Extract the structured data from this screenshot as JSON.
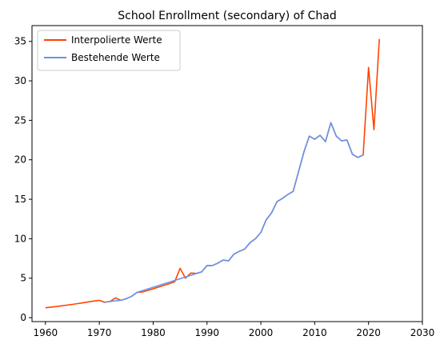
{
  "chart_data": {
    "type": "line",
    "title": "School Enrollment (secondary) of Chad",
    "xlabel": "",
    "ylabel": "",
    "xlim": [
      1957.5,
      2030
    ],
    "ylim": [
      -0.5,
      37
    ],
    "xticks": [
      1960,
      1970,
      1980,
      1990,
      2000,
      2010,
      2020,
      2030
    ],
    "yticks": [
      0,
      5,
      10,
      15,
      20,
      25,
      30,
      35
    ],
    "grid": false,
    "legend_position": "top-left",
    "series": [
      {
        "name": "Interpolierte Werte",
        "color": "#ff4500",
        "x": [
          1960,
          1961,
          1962,
          1963,
          1964,
          1965,
          1966,
          1967,
          1968,
          1969,
          1970,
          1971,
          1972,
          1973,
          1974,
          1975,
          1976,
          1977,
          1978,
          1979,
          1980,
          1981,
          1982,
          1983,
          1984,
          1985,
          1986,
          1987,
          1988,
          1989,
          1990,
          1991,
          1992,
          1993,
          1994,
          1995,
          1996,
          1997,
          1998,
          1999,
          2000,
          2001,
          2002,
          2003,
          2004,
          2005,
          2006,
          2007,
          2008,
          2009,
          2010,
          2011,
          2012,
          2013,
          2014,
          2015,
          2016,
          2017,
          2018,
          2019,
          2020,
          2021,
          2022
        ],
        "y": [
          1.25,
          1.33,
          1.41,
          1.5,
          1.59,
          1.68,
          1.78,
          1.89,
          2.0,
          2.1,
          2.2,
          1.95,
          2.05,
          2.5,
          2.2,
          2.4,
          2.7,
          3.2,
          3.25,
          3.45,
          3.65,
          3.87,
          4.1,
          4.3,
          4.55,
          6.25,
          5.0,
          5.65,
          5.6,
          5.8,
          6.6,
          6.6,
          6.9,
          7.3,
          7.2,
          8.05,
          8.4,
          8.7,
          9.5,
          10.0,
          10.8,
          12.4,
          13.3,
          14.7,
          15.1,
          15.6,
          16.0,
          18.5,
          21.0,
          23.0,
          22.6,
          23.1,
          22.3,
          24.7,
          23.0,
          22.4,
          22.5,
          20.7,
          20.3,
          20.6,
          31.7,
          23.8,
          35.3
        ]
      },
      {
        "name": "Bestehende Werte",
        "color": "#6495ed",
        "x": [
          1971,
          1972,
          1974,
          1975,
          1976,
          1977,
          1989,
          1990,
          1991,
          1992,
          1993,
          1994,
          1995,
          1996,
          1997,
          1998,
          1999,
          2000,
          2001,
          2002,
          2003,
          2004,
          2005,
          2006,
          2007,
          2008,
          2009,
          2010,
          2011,
          2012,
          2013,
          2014,
          2015,
          2016,
          2017,
          2018,
          2019
        ],
        "y": [
          1.95,
          2.05,
          2.2,
          2.4,
          2.7,
          3.2,
          5.8,
          6.6,
          6.6,
          6.9,
          7.3,
          7.2,
          8.05,
          8.4,
          8.7,
          9.5,
          10.0,
          10.8,
          12.4,
          13.3,
          14.7,
          15.1,
          15.6,
          16.0,
          18.5,
          21.0,
          23.0,
          22.6,
          23.1,
          22.3,
          24.7,
          23.0,
          22.4,
          22.5,
          20.7,
          20.3,
          20.6
        ]
      }
    ]
  }
}
